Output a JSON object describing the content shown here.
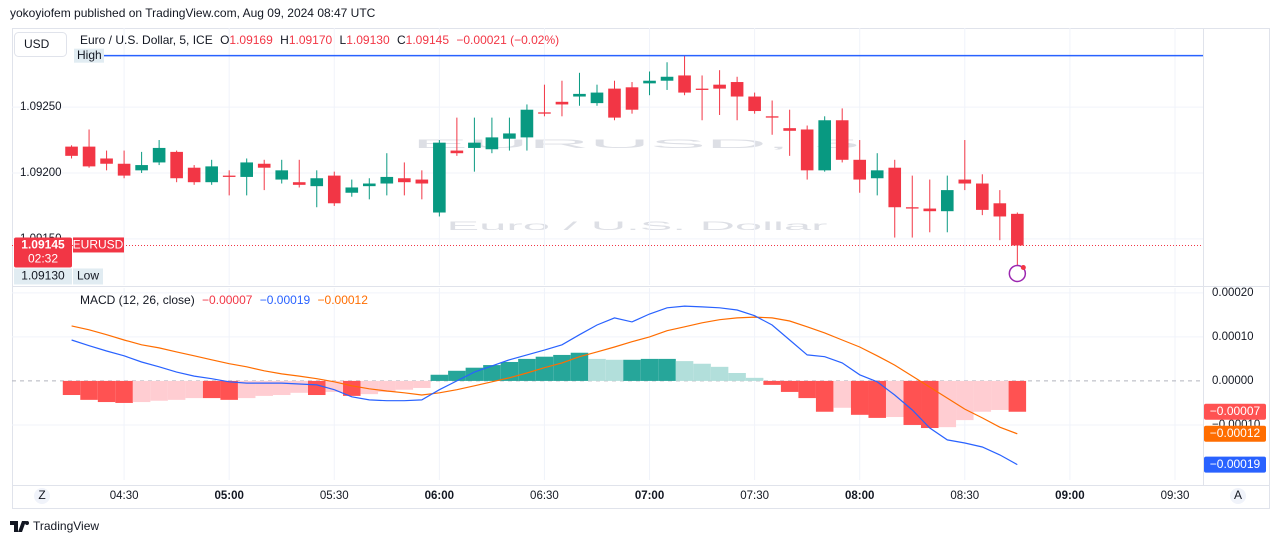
{
  "header": {
    "text": "yokoyiofem published on TradingView.com, Aug 09, 2024 08:47 UTC"
  },
  "toolbar": {
    "currency": "USD",
    "zoom_left": "Z",
    "zoom_right": "A"
  },
  "footer": {
    "brand": "TradingView"
  },
  "chart_data": [
    {
      "type": "candlestick",
      "title": "Euro / U.S. Dollar, 5, ICE",
      "watermark": "EURUSD, 5",
      "watermark_subtitle": "Euro / U.S. Dollar",
      "ohlc_legend": [
        {
          "label": "O",
          "value": "1.09169"
        },
        {
          "label": "H",
          "value": "1.09170"
        },
        {
          "label": "L",
          "value": "1.09130"
        },
        {
          "label": "C",
          "value": "1.09145"
        }
      ],
      "change": "−0.00021 (−0.02%)",
      "x": [
        255,
        260,
        265,
        270,
        275,
        280,
        285,
        290,
        295,
        300,
        305,
        310,
        315,
        320,
        325,
        330,
        335,
        340,
        345,
        350,
        355,
        360,
        365,
        370,
        375,
        380,
        385,
        390,
        395,
        400,
        405,
        410,
        415,
        420,
        425,
        430,
        435,
        440,
        445,
        450,
        455,
        460,
        465,
        470,
        475,
        480,
        485,
        490,
        495,
        500,
        505,
        510,
        515,
        520,
        525
      ],
      "open": [
        1.0922,
        1.0922,
        1.09211,
        1.09207,
        1.09202,
        1.09208,
        1.09216,
        1.09204,
        1.09193,
        1.09198,
        1.09197,
        1.09207,
        1.09195,
        1.09193,
        1.0919,
        1.09198,
        1.09185,
        1.0919,
        1.09192,
        1.09196,
        1.09195,
        1.0917,
        1.09217,
        1.09219,
        1.09218,
        1.09226,
        1.09227,
        1.09246,
        1.09254,
        1.09258,
        1.09253,
        1.09264,
        1.09265,
        1.09268,
        1.0927,
        1.09274,
        1.09264,
        1.09267,
        1.09269,
        1.09258,
        1.09243,
        1.09234,
        1.09233,
        1.09202,
        1.0924,
        1.0921,
        1.09196,
        1.09204,
        1.09174,
        1.09173,
        1.09171,
        1.09195,
        1.09192,
        1.09177,
        1.09169
      ],
      "high": [
        1.09221,
        1.09233,
        1.09217,
        1.09217,
        1.09216,
        1.09225,
        1.09217,
        1.09206,
        1.0921,
        1.09202,
        1.09211,
        1.0921,
        1.0921,
        1.0921,
        1.09202,
        1.09201,
        1.09195,
        1.09196,
        1.09215,
        1.09208,
        1.09202,
        1.09225,
        1.09242,
        1.09242,
        1.09242,
        1.09242,
        1.09252,
        1.09267,
        1.0927,
        1.09276,
        1.09267,
        1.0927,
        1.09269,
        1.09277,
        1.09284,
        1.09289,
        1.09274,
        1.09278,
        1.09273,
        1.09261,
        1.09255,
        1.09248,
        1.09236,
        1.09243,
        1.09249,
        1.09225,
        1.09215,
        1.0921,
        1.09198,
        1.09195,
        1.09198,
        1.09225,
        1.09199,
        1.09187,
        1.0917
      ],
      "low": [
        1.09211,
        1.09204,
        1.09202,
        1.09196,
        1.092,
        1.09206,
        1.09193,
        1.09191,
        1.09191,
        1.09183,
        1.09183,
        1.09187,
        1.09192,
        1.09189,
        1.09174,
        1.09175,
        1.09182,
        1.0918,
        1.09183,
        1.09183,
        1.0918,
        1.09167,
        1.09213,
        1.09201,
        1.09215,
        1.09217,
        1.09217,
        1.09243,
        1.09243,
        1.09251,
        1.09251,
        1.0924,
        1.09245,
        1.09259,
        1.09263,
        1.09259,
        1.0924,
        1.09244,
        1.0924,
        1.09245,
        1.09229,
        1.09213,
        1.09195,
        1.09201,
        1.09208,
        1.09185,
        1.09183,
        1.09151,
        1.09151,
        1.09155,
        1.09155,
        1.09187,
        1.09168,
        1.09149,
        1.0913
      ],
      "close": [
        1.09213,
        1.09205,
        1.09207,
        1.09198,
        1.09206,
        1.09219,
        1.09196,
        1.09193,
        1.09205,
        1.09197,
        1.09208,
        1.09204,
        1.09202,
        1.09191,
        1.09196,
        1.09177,
        1.09189,
        1.09192,
        1.09197,
        1.09193,
        1.09192,
        1.09223,
        1.09215,
        1.09223,
        1.09227,
        1.0923,
        1.09248,
        1.09245,
        1.09252,
        1.0926,
        1.09261,
        1.09242,
        1.09248,
        1.0927,
        1.09273,
        1.09261,
        1.09263,
        1.09264,
        1.09258,
        1.09247,
        1.09242,
        1.09232,
        1.09202,
        1.0924,
        1.0921,
        1.09195,
        1.09202,
        1.09174,
        1.09173,
        1.09171,
        1.09187,
        1.09192,
        1.09172,
        1.09167,
        1.09145
      ],
      "up_color": "#089981",
      "down_color": "#f23645",
      "xlim": [
        238,
        578
      ],
      "xticks": [
        {
          "value": 270,
          "label": "04:30"
        },
        {
          "value": 300,
          "label": "05:00"
        },
        {
          "value": 330,
          "label": "05:30"
        },
        {
          "value": 360,
          "label": "06:00"
        },
        {
          "value": 390,
          "label": "06:30"
        },
        {
          "value": 420,
          "label": "07:00"
        },
        {
          "value": 450,
          "label": "07:30"
        },
        {
          "value": 480,
          "label": "08:00"
        },
        {
          "value": 510,
          "label": "08:30"
        },
        {
          "value": 540,
          "label": "09:00"
        },
        {
          "value": 570,
          "label": "09:30"
        }
      ],
      "ylim": [
        1.09115,
        1.0931
      ],
      "yticks": [
        {
          "value": 1.0925,
          "label": "1.09250"
        },
        {
          "value": 1.092,
          "label": "1.09200"
        },
        {
          "value": 1.0915,
          "label": "1.09150"
        }
      ],
      "grid": true,
      "last_price_label": "1.09145",
      "symbol_tag": "EURUSD",
      "countdown": "02:32",
      "low_label": {
        "value": "1.09130",
        "label": "Low"
      },
      "high_label": "High",
      "high_line_color": "#2962ff"
    },
    {
      "type": "macd",
      "title": "MACD (12, 26, close)",
      "ylim": [
        -0.000225,
        0.000211
      ],
      "yticks": [
        {
          "value": 0.0002,
          "label": "0.00020"
        },
        {
          "value": 0.0001,
          "label": "0.00010"
        },
        {
          "value": 0,
          "label": "0.00000"
        },
        {
          "value": -0.0001,
          "label": "−0.00010"
        }
      ],
      "histogram": {
        "colors": [
          "#26a69a",
          "#b2dfdb",
          "#ff5252",
          "#ffcdd2"
        ],
        "last_label": "−0.00007",
        "values": [
          -3.2e-05,
          -4.3e-05,
          -4.8e-05,
          -5e-05,
          -4.8e-05,
          -4.5e-05,
          -4.3e-05,
          -3.9e-05,
          -3.9e-05,
          -4.3e-05,
          -3.9e-05,
          -3.4e-05,
          -3.2e-05,
          -2.7e-05,
          -3.2e-05,
          -2.5e-05,
          -3.4e-05,
          -3e-05,
          -2.5e-05,
          -2e-05,
          -1.6e-05,
          1.4e-05,
          2.3e-05,
          3e-05,
          3.6e-05,
          4.3e-05,
          5e-05,
          5.5e-05,
          5.9e-05,
          6.4e-05,
          5e-05,
          4.8e-05,
          4.8e-05,
          5e-05,
          5e-05,
          4.5e-05,
          3.9e-05,
          3.2e-05,
          1.8e-05,
          7e-06,
          -9e-06,
          -2.5e-05,
          -3.9e-05,
          -7e-05,
          -6.1e-05,
          -7.7e-05,
          -8.4e-05,
          -8.2e-05,
          -0.0001,
          -0.000107,
          -0.000105,
          -8.9e-05,
          -7e-05,
          -6.6e-05,
          -7e-05
        ]
      },
      "macd": {
        "color": "#2962ff",
        "last_label": "−0.00019",
        "values": [
          9.3e-05,
          8e-05,
          6.8e-05,
          5.7e-05,
          4.3e-05,
          3.2e-05,
          2e-05,
          1.1e-05,
          5e-06,
          -2e-06,
          -5e-06,
          -5e-06,
          -5e-06,
          -7e-06,
          -9e-06,
          -2e-05,
          -3.6e-05,
          -4.3e-05,
          -4.5e-05,
          -4.5e-05,
          -4.3e-05,
          -2e-05,
          0,
          2e-05,
          3.4e-05,
          4.8e-05,
          5.9e-05,
          7e-05,
          8.2e-05,
          0.000105,
          0.000127,
          0.000143,
          0.000134,
          0.000152,
          0.000166,
          0.00017,
          0.000168,
          0.000166,
          0.000161,
          0.000148,
          0.000127,
          9.3e-05,
          5.9e-05,
          5.5e-05,
          4.1e-05,
          1.4e-05,
          -2e-06,
          -3.2e-05,
          -6.6e-05,
          -0.000107,
          -0.000134,
          -0.000141,
          -0.00015,
          -0.000168,
          -0.00019
        ]
      },
      "signal": {
        "color": "#ff6d00",
        "last_label": "−0.00012",
        "values": [
          0.000125,
          0.000116,
          0.000105,
          9.3e-05,
          8.2e-05,
          7.5e-05,
          6.6e-05,
          5.7e-05,
          4.8e-05,
          3.9e-05,
          3.2e-05,
          2.3e-05,
          1.6e-05,
          1.1e-05,
          5e-06,
          -2e-06,
          -1.1e-05,
          -1.8e-05,
          -2.3e-05,
          -2.7e-05,
          -3.2e-05,
          -2.7e-05,
          -2e-05,
          -1.1e-05,
          -2e-06,
          7e-06,
          1.8e-05,
          3e-05,
          4.1e-05,
          5.5e-05,
          6.6e-05,
          7.7e-05,
          8.9e-05,
          0.0001,
          0.000114,
          0.000123,
          0.000132,
          0.000139,
          0.000143,
          0.000145,
          0.000143,
          0.000136,
          0.000123,
          0.000109,
          9.3e-05,
          7.7e-05,
          5.7e-05,
          3.6e-05,
          1.1e-05,
          -1.4e-05,
          -3.9e-05,
          -6.4e-05,
          -8.4e-05,
          -0.000105,
          -0.00012
        ]
      }
    }
  ]
}
